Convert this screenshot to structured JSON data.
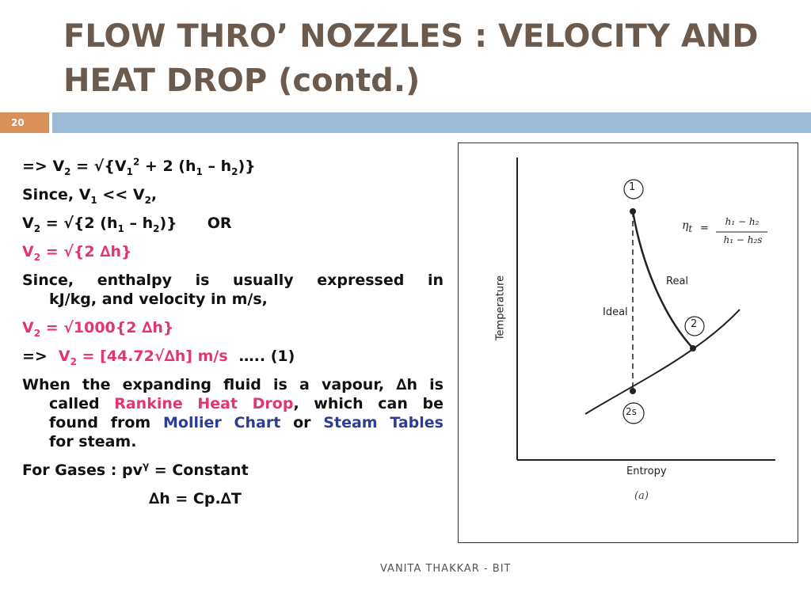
{
  "slide": {
    "title_line1": "FLOW THRO’ NOZZLES : VELOCITY AND",
    "title_line2": "HEAT DROP (contd.)",
    "number": "20",
    "footer": "VANITA THAKKAR - BIT"
  },
  "content": {
    "l1_prefix": "=> V",
    "l1_sub2": "2",
    "l1_eq": " = √{V",
    "l1_sub1": "1",
    "l1_sup": "2",
    "l1_rest": " + 2 (h",
    "l1_h1": "1",
    "l1_minus": " – h",
    "l1_h2": "2",
    "l1_end": ")}",
    "l2_a": "Since, V",
    "l2_s1": "1",
    "l2_b": " << V",
    "l2_s2": "2",
    "l2_c": ",",
    "l3_a": "V",
    "l3_s2": "2",
    "l3_b": " = √{2 (h",
    "l3_h1": "1",
    "l3_c": " – h",
    "l3_h2": "2",
    "l3_d": ")}",
    "l3_or": "OR",
    "l4_a": "V",
    "l4_s2": "2",
    "l4_b": " = √{2 ∆h}",
    "l5_line1": "Since, enthalpy is usually expressed in",
    "l5_line2": "kJ/kg, and velocity in m/s,",
    "l6_a": "V",
    "l6_s2": "2",
    "l6_b": " = √1000{2 ∆h}",
    "l7_prefix": "=>",
    "l7_a": "V",
    "l7_s2": "2",
    "l7_b": " = [44.72√∆h] m/s",
    "l7_tail": "….. (1)",
    "l8_line1": "When the expanding fluid is a vapour, ∆h is",
    "l8_a": "called",
    "l8_rankine": "Rankine Heat Drop",
    "l8_b": ", which can be",
    "l8_c": "found from",
    "l8_mollier": "Mollier Chart",
    "l8_or": "or",
    "l8_steam": "Steam Tables",
    "l8_d": "for steam.",
    "l9_a": "For Gases : pv",
    "l9_sup": "γ",
    "l9_b": " = Constant",
    "l10": "∆h = Cp.∆T"
  },
  "figure": {
    "ylabel": "Temperature",
    "xlabel": "Entropy",
    "caption": "(a)",
    "point1": "1",
    "point2": "2",
    "point2s": "2s",
    "label_real": "Real",
    "label_ideal": "Ideal",
    "eff_lhs": "η",
    "eff_lhs_sub": "t",
    "eff_eq": "=",
    "eff_num": "h₁ − h₂",
    "eff_den": "h₁ − h₂s"
  }
}
